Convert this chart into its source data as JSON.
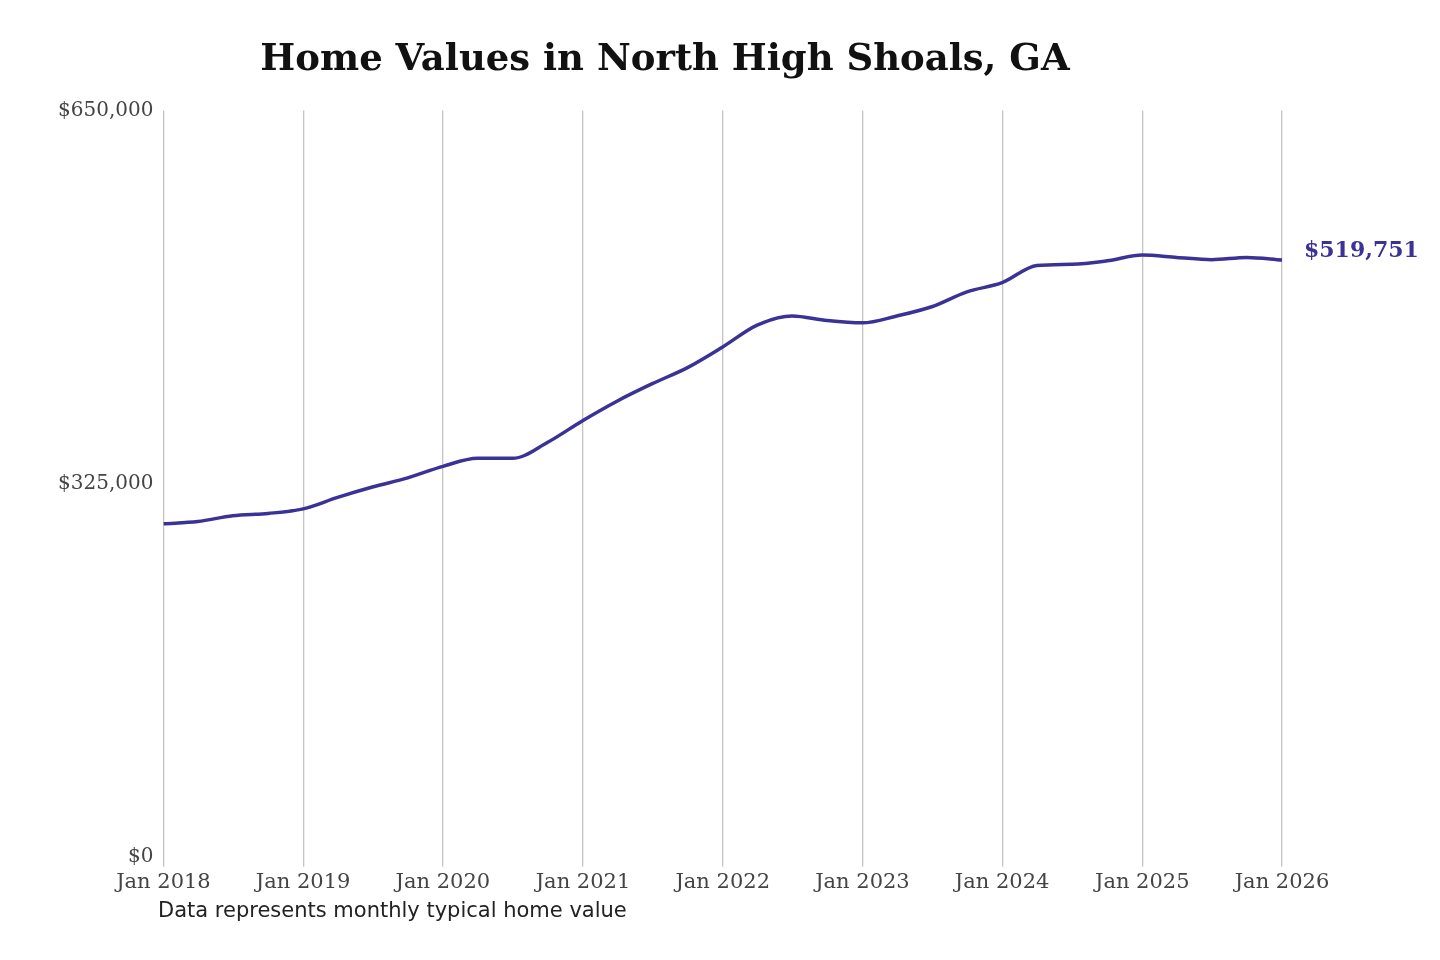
{
  "chart_data": {
    "type": "line",
    "title": "Home Values in North High Shoals, GA",
    "x": [
      "2018-01",
      "2018-04",
      "2018-07",
      "2018-10",
      "2019-01",
      "2019-04",
      "2019-07",
      "2019-10",
      "2020-01",
      "2020-04",
      "2020-07",
      "2020-10",
      "2021-01",
      "2021-04",
      "2021-07",
      "2021-10",
      "2022-01",
      "2022-04",
      "2022-07",
      "2022-10",
      "2023-01",
      "2023-04",
      "2023-07",
      "2023-10",
      "2024-01",
      "2024-04",
      "2024-07",
      "2024-10",
      "2025-01",
      "2025-04",
      "2025-07",
      "2025-10",
      "2026-01"
    ],
    "series": [
      {
        "color": "#3a3296",
        "values": [
          290000,
          292000,
          297000,
          299000,
          303000,
          313000,
          322000,
          330000,
          340000,
          347000,
          347000,
          361000,
          380000,
          397000,
          412000,
          426000,
          444000,
          463000,
          471000,
          467000,
          465000,
          471000,
          479000,
          492000,
          500000,
          515000,
          516000,
          519000,
          524000,
          522000,
          520000,
          522000,
          519751
        ],
        "value_labels": [
          null,
          null,
          null,
          null,
          null,
          null,
          null,
          null,
          null,
          null,
          null,
          null,
          null,
          null,
          null,
          null,
          null,
          null,
          null,
          null,
          null,
          null,
          null,
          null,
          null,
          null,
          null,
          null,
          null,
          null,
          null,
          null,
          "$519,751"
        ]
      }
    ],
    "xlim": [
      "2018-01",
      "2026-01"
    ],
    "xticks": [
      {
        "value": "2018-01",
        "label": "Jan 2018"
      },
      {
        "value": "2019-01",
        "label": "Jan 2019"
      },
      {
        "value": "2020-01",
        "label": "Jan 2020"
      },
      {
        "value": "2021-01",
        "label": "Jan 2021"
      },
      {
        "value": "2022-01",
        "label": "Jan 2022"
      },
      {
        "value": "2023-01",
        "label": "Jan 2023"
      },
      {
        "value": "2024-01",
        "label": "Jan 2024"
      },
      {
        "value": "2025-01",
        "label": "Jan 2025"
      },
      {
        "value": "2026-01",
        "label": "Jan 2026"
      }
    ],
    "ylim": [
      0,
      650000
    ],
    "yticks": [
      {
        "value": 0,
        "label": "$0"
      },
      {
        "value": 325000,
        "label": "$325,000"
      },
      {
        "value": 650000,
        "label": "$650,000"
      }
    ],
    "grid": "x",
    "legend": false,
    "marker": "none",
    "line_style": "solid",
    "annotations": [
      "Data represents monthly typical home value"
    ]
  }
}
